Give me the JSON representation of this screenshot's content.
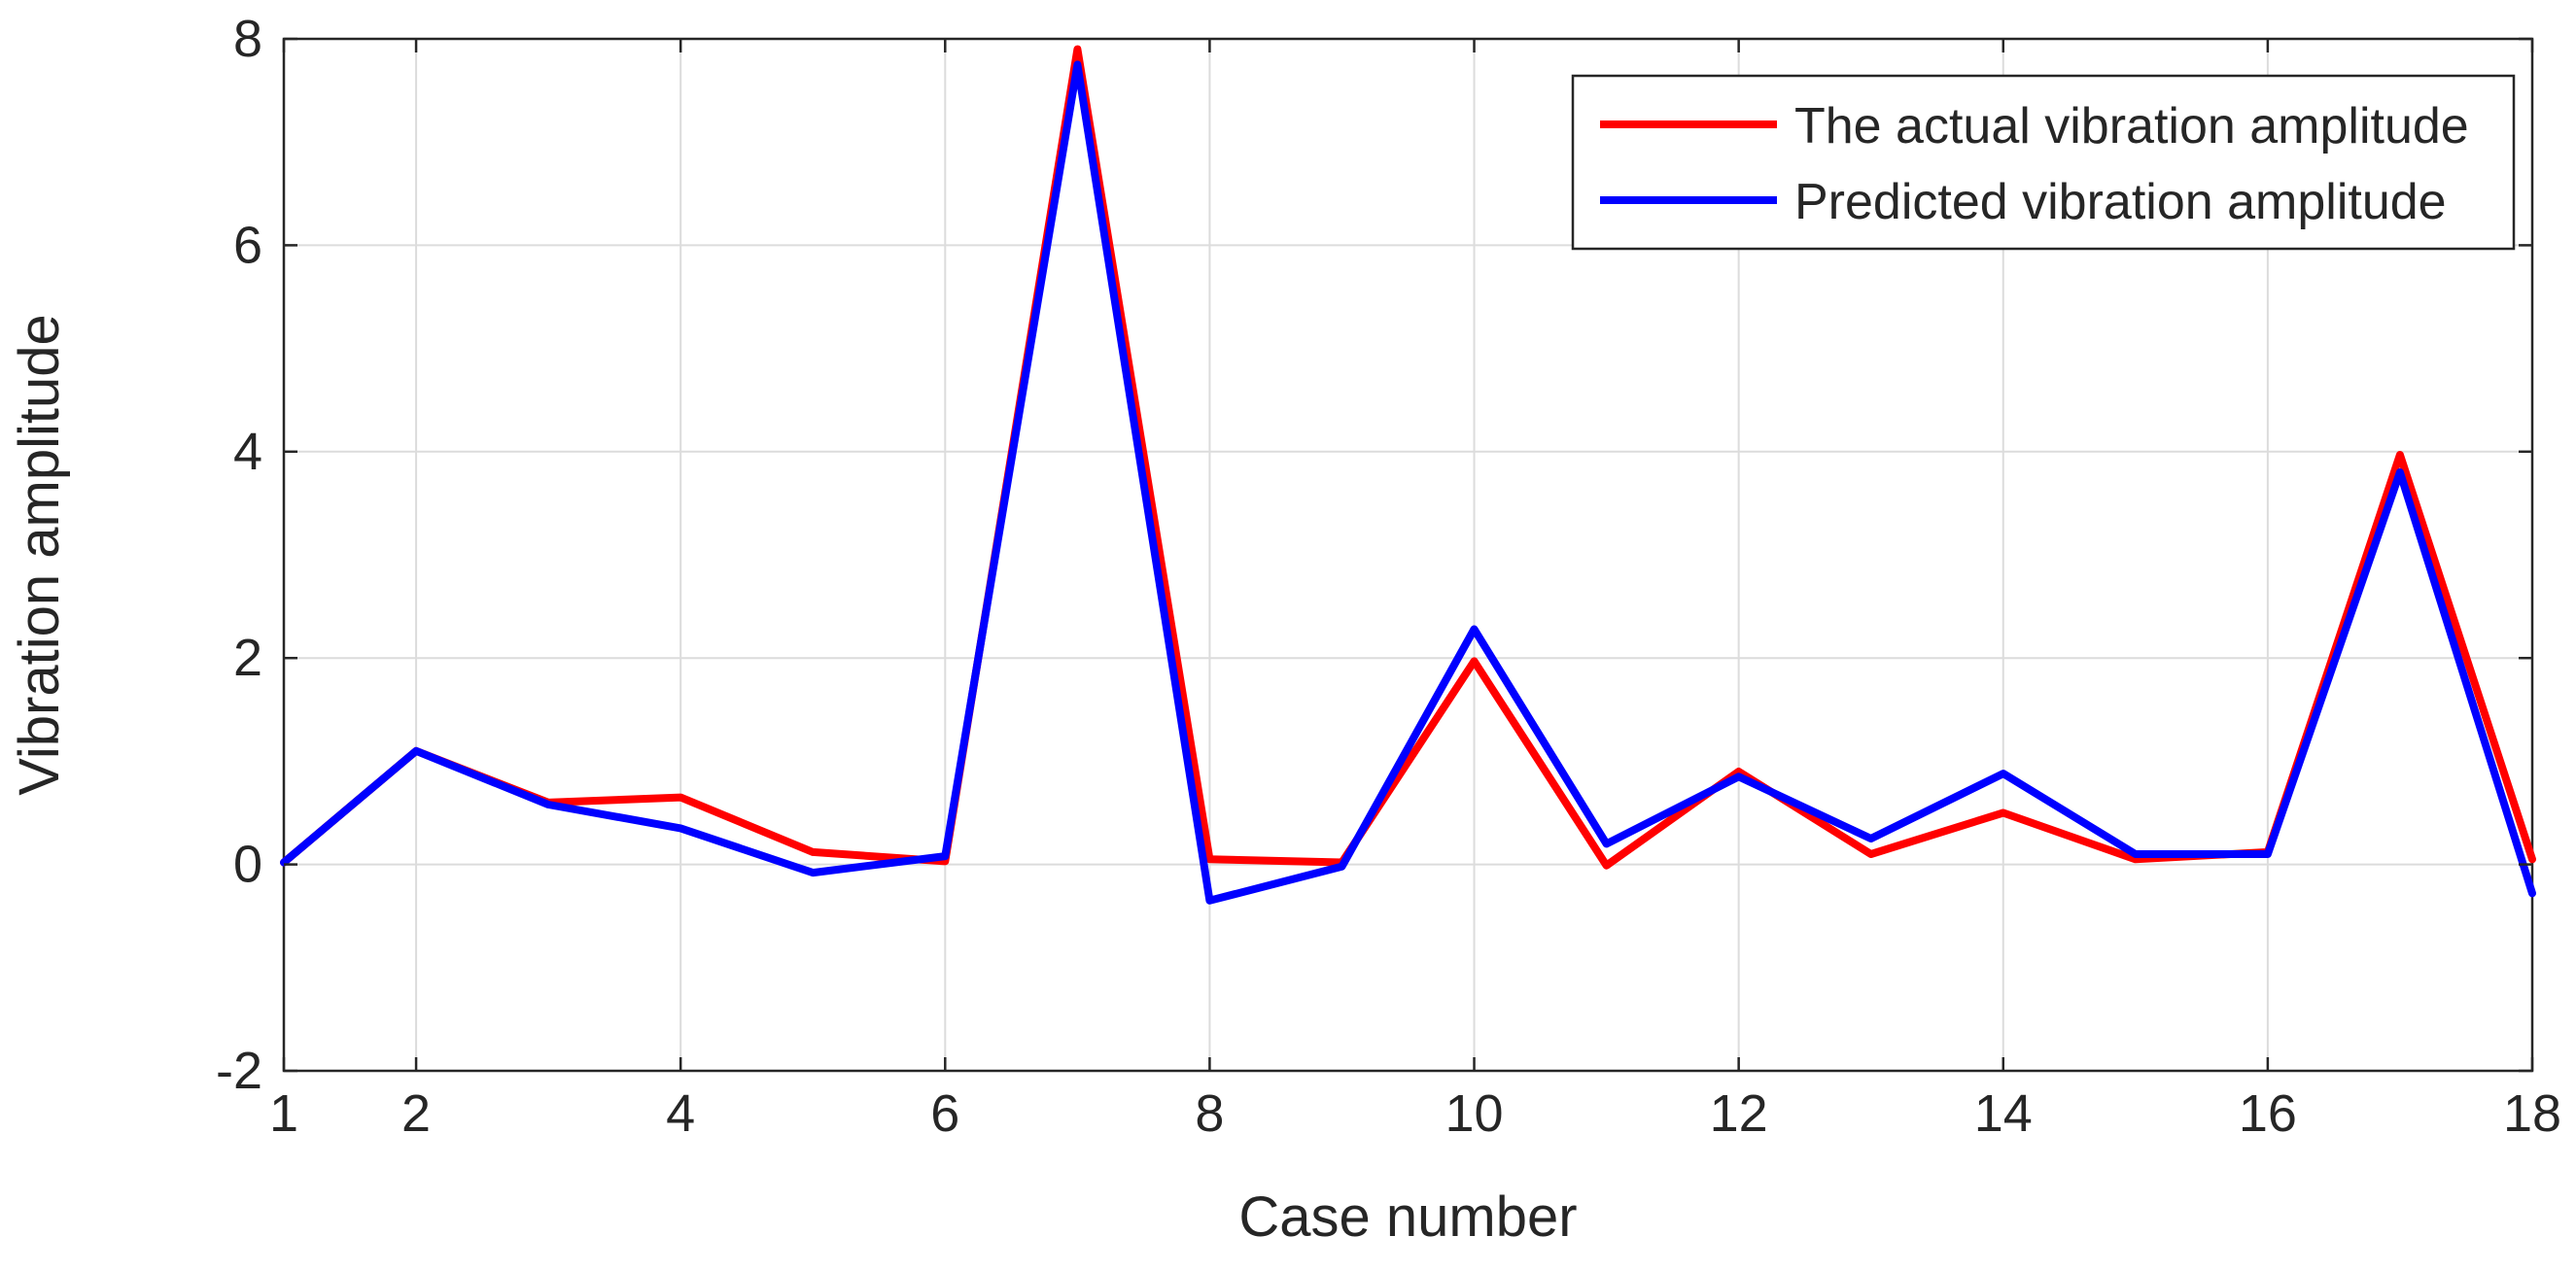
{
  "chart_data": {
    "type": "line",
    "title": "",
    "xlabel": "Case number",
    "ylabel": "Vibration amplitude",
    "xlim": [
      1,
      18
    ],
    "ylim": [
      -2,
      8
    ],
    "x_ticks": [
      1,
      2,
      4,
      6,
      8,
      10,
      12,
      14,
      16,
      18
    ],
    "y_ticks": [
      -2,
      0,
      2,
      4,
      6,
      8
    ],
    "x_tick_labels": [
      "1",
      "2",
      "4",
      "6",
      "8",
      "10",
      "12",
      "14",
      "16",
      "18"
    ],
    "y_tick_labels": [
      "-2",
      "0",
      "2",
      "4",
      "6",
      "8"
    ],
    "grid": true,
    "legend_position": "top-right",
    "x": [
      1,
      2,
      3,
      4,
      5,
      6,
      7,
      8,
      9,
      10,
      11,
      12,
      13,
      14,
      15,
      16,
      17,
      18
    ],
    "series": [
      {
        "name": "The actual vibration amplitude",
        "color": "#ff0000",
        "values": [
          0.02,
          1.1,
          0.6,
          0.65,
          0.12,
          0.03,
          7.9,
          0.05,
          0.02,
          1.97,
          -0.01,
          0.9,
          0.1,
          0.5,
          0.05,
          0.12,
          3.97,
          0.05
        ]
      },
      {
        "name": "Predicted vibration amplitude",
        "color": "#0000ff",
        "values": [
          0.02,
          1.1,
          0.58,
          0.35,
          -0.08,
          0.08,
          7.75,
          -0.35,
          -0.02,
          2.28,
          0.2,
          0.85,
          0.25,
          0.88,
          0.1,
          0.1,
          3.8,
          -0.28
        ]
      }
    ]
  }
}
